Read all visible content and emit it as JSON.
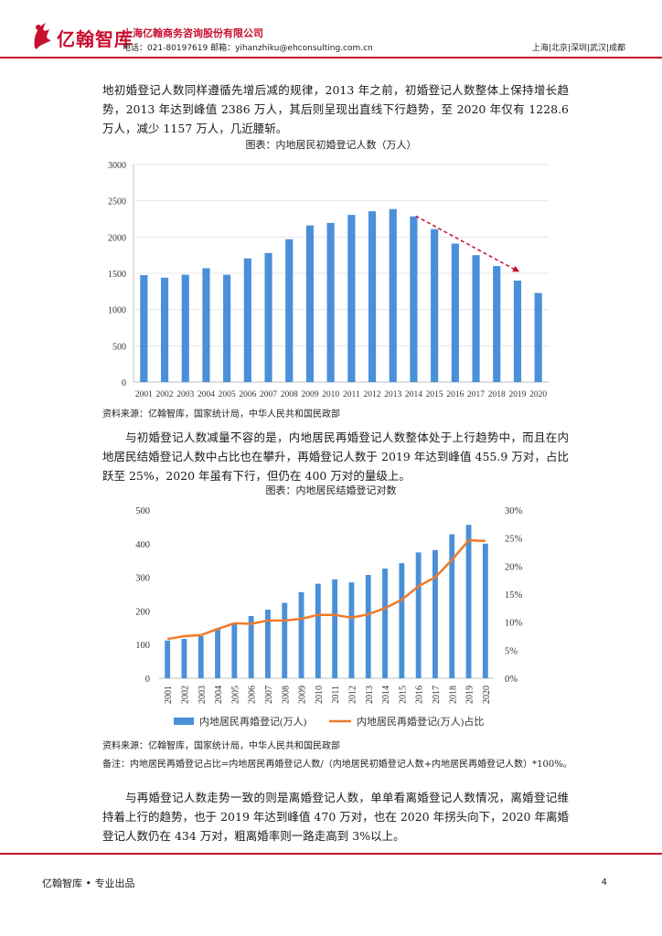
{
  "header": {
    "logo_text": "亿翰智库",
    "company": "上海亿翰商务咨询股份有限公司",
    "contact": "电话：021-80197619 邮箱：yihanzhiku@ehconsulting.com.cn",
    "cities": "上海|北京|深圳|武汉|成都",
    "brand_color": "#c8102e"
  },
  "body": {
    "para1": "地初婚登记人数同样遵循先增后减的规律，2013 年之前，初婚登记人数整体上保持增长趋势，2013 年达到峰值 2386 万人，其后则呈现出直线下行趋势，至 2020 年仅有 1228.6 万人，减少 1157 万人，几近腰斩。",
    "chart1_caption": "图表：内地居民初婚登记人数（万人）",
    "source1": "资料来源：亿翰智库，国家统计局，中华人民共和国民政部",
    "para2": "与初婚登记人数减量不容的是，内地居民再婚登记人数整体处于上行趋势中，而且在内地居民结婚登记人数中占比也在攀升，再婚登记人数于 2019 年达到峰值 455.9 万对，占比跃至 25%，2020 年虽有下行，但仍在 400 万对的量级上。",
    "chart2_caption": "图表：内地居民结婚登记对数",
    "source2": "资料来源：亿翰智库，国家统计局，中华人民共和国民政部",
    "note2": "备注：内地居民再婚登记占比=内地居民再婚登记人数/（内地居民初婚登记人数+内地居民再婚登记人数）*100%。",
    "para3": "与再婚登记人数走势一致的则是离婚登记人数，单单看离婚登记人数情况，离婚登记维持着上行的趋势，也于 2019 年达到峰值 470 万对，也在 2020 年拐头向下，2020 年离婚登记人数仍在 434 万对，粗离婚率则一路走高到 3%以上。"
  },
  "footer": {
    "left": "亿翰智库 • 专业出品",
    "page": "4"
  },
  "chart_data": [
    {
      "type": "bar",
      "categories": [
        "2001",
        "2002",
        "2003",
        "2004",
        "2005",
        "2006",
        "2007",
        "2008",
        "2009",
        "2010",
        "2011",
        "2012",
        "2013",
        "2014",
        "2015",
        "2016",
        "2017",
        "2018",
        "2019",
        "2020"
      ],
      "values": [
        1475,
        1440,
        1480,
        1570,
        1480,
        1705,
        1780,
        1970,
        2160,
        2195,
        2305,
        2355,
        2386,
        2285,
        2110,
        1910,
        1750,
        1600,
        1400,
        1228.6
      ],
      "ylim": [
        0,
        3000
      ],
      "yticks": [
        0,
        500,
        1000,
        1500,
        2000,
        2500,
        3000
      ],
      "bar_color": "#4a90d9",
      "grid": true,
      "annotation": {
        "type": "dashed-arrow",
        "from": [
          "2014",
          2290
        ],
        "to": [
          "2019",
          1520
        ],
        "color": "#c8102e"
      }
    },
    {
      "type": "bar+line",
      "categories": [
        "2001",
        "2002",
        "2003",
        "2004",
        "2005",
        "2006",
        "2007",
        "2008",
        "2009",
        "2010",
        "2011",
        "2012",
        "2013",
        "2014",
        "2015",
        "2016",
        "2017",
        "2018",
        "2019",
        "2020"
      ],
      "series": [
        {
          "name": "内地居民再婚登记(万人)",
          "type": "bar",
          "axis": "left",
          "color": "#4a90d9",
          "values": [
            112,
            117,
            125,
            148,
            165,
            185,
            204,
            224,
            256,
            281,
            294,
            285,
            307,
            326,
            342,
            374,
            381,
            428,
            455.9,
            400
          ]
        },
        {
          "name": "内地居民再婚登记(万人)占比",
          "type": "line",
          "axis": "right",
          "color": "#f07a2a",
          "values": [
            7.0,
            7.5,
            7.7,
            8.8,
            9.8,
            9.7,
            10.3,
            10.3,
            10.6,
            11.3,
            11.3,
            10.8,
            11.4,
            12.5,
            14.0,
            16.4,
            18.0,
            21.1,
            24.6,
            24.5
          ]
        }
      ],
      "ylim_left": [
        0,
        500
      ],
      "yticks_left": [
        0,
        100,
        200,
        300,
        400,
        500
      ],
      "ylim_right": [
        0,
        30
      ],
      "yticks_right": [
        "0%",
        "5%",
        "10%",
        "15%",
        "20%",
        "25%",
        "30%"
      ],
      "legend_position": "bottom"
    }
  ]
}
